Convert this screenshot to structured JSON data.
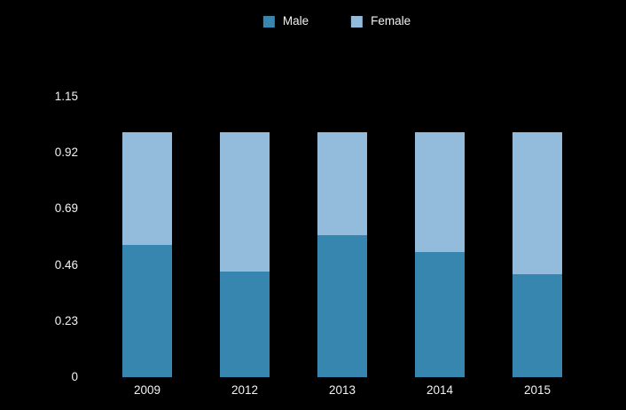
{
  "chart_data": {
    "type": "bar",
    "stacked": true,
    "title": "",
    "xlabel": "",
    "ylabel": "",
    "categories": [
      "2009",
      "2012",
      "2013",
      "2014",
      "2015"
    ],
    "series": [
      {
        "name": "Male",
        "color": "#3786b0",
        "values": [
          0.54,
          0.43,
          0.58,
          0.51,
          0.42
        ]
      },
      {
        "name": "Female",
        "color": "#92bbdc",
        "values": [
          0.46,
          0.57,
          0.42,
          0.49,
          0.58
        ]
      }
    ],
    "ylim": [
      0,
      1.15
    ],
    "yticks": [
      0,
      0.23,
      0.46,
      0.69,
      0.92,
      1.15
    ],
    "ytick_labels": [
      "0",
      "0.23",
      "0.46",
      "0.69",
      "0.92",
      "1.15"
    ],
    "legend_position": "top-center",
    "grid": false,
    "background": "#000000",
    "text_color": "#f2f2f2"
  }
}
